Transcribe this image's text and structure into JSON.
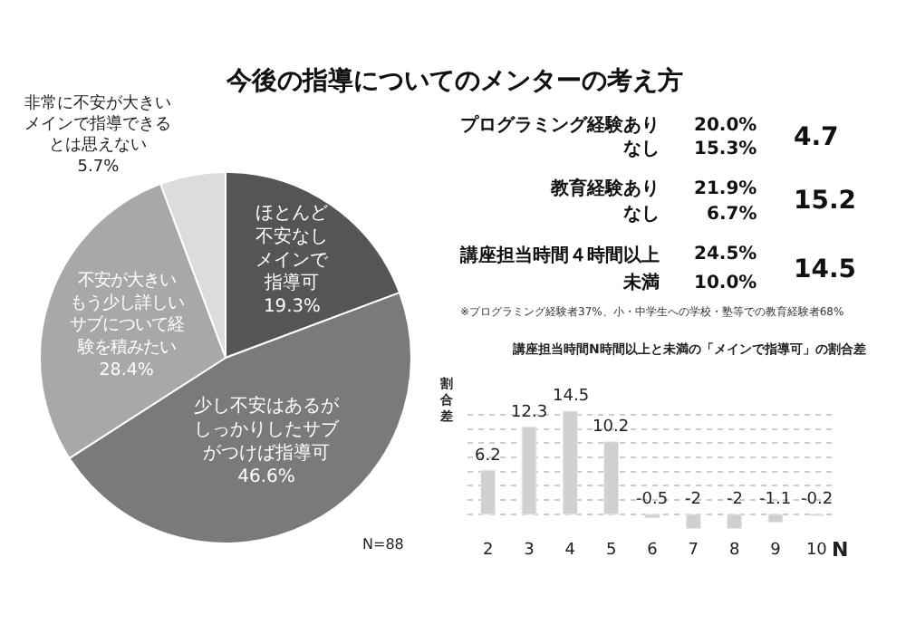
{
  "chart_data": [
    {
      "type": "pie",
      "title": "今後の指導についてのメンターの考え方",
      "categories": [
        "ほとんど不安なしメインで指導可",
        "少し不安はあるがしっかりしたサブがつけば指導可",
        "不安が大きいもう少し詳しいサブについて経験を積みたい",
        "非常に不安が大きいメインで指導できるとは思えない"
      ],
      "values": [
        19.3,
        46.6,
        28.4,
        5.7
      ],
      "value_labels": [
        "19.3%",
        "46.6%",
        "28.4%",
        "5.7%"
      ],
      "colors": [
        "#555555",
        "#7a7a7a",
        "#a8a8a8",
        "#dcdcdc"
      ],
      "annotations": [
        "N=88"
      ]
    },
    {
      "type": "other",
      "annotations": [
        "プログラミング経験あり",
        "20.0%",
        "なし",
        "15.3%",
        "4.7",
        "教育経験あり",
        "21.9%",
        "なし",
        "6.7%",
        "15.2",
        "講座担当時間４時間以上",
        "24.5%",
        "未満",
        "10.0%",
        "14.5",
        "※プログラミング経験者37%、小・中学生への学校・塾等での教育経験者68%"
      ]
    },
    {
      "type": "bar",
      "title": "講座担当時間N時間以上と未満の「メインで指導可」の割合差",
      "xlabel": "N",
      "ylabel": "割合差",
      "categories": [
        "2",
        "3",
        "4",
        "5",
        "6",
        "7",
        "8",
        "9",
        "10"
      ],
      "values": [
        6.2,
        12.3,
        14.5,
        10.2,
        -0.5,
        -2,
        -2,
        -1.1,
        -0.2
      ],
      "color": "#d0d0d0",
      "data_labels": true,
      "yticks": [
        {
          "value": 0,
          "label": null
        },
        {
          "value": 2,
          "label": null
        },
        {
          "value": 4,
          "label": null
        },
        {
          "value": 6,
          "label": null
        },
        {
          "value": 8,
          "label": null
        },
        {
          "value": 10,
          "label": null
        },
        {
          "value": 12,
          "label": null
        },
        {
          "value": 14,
          "label": null
        }
      ],
      "grid": "y",
      "tick_labels": "x"
    }
  ]
}
